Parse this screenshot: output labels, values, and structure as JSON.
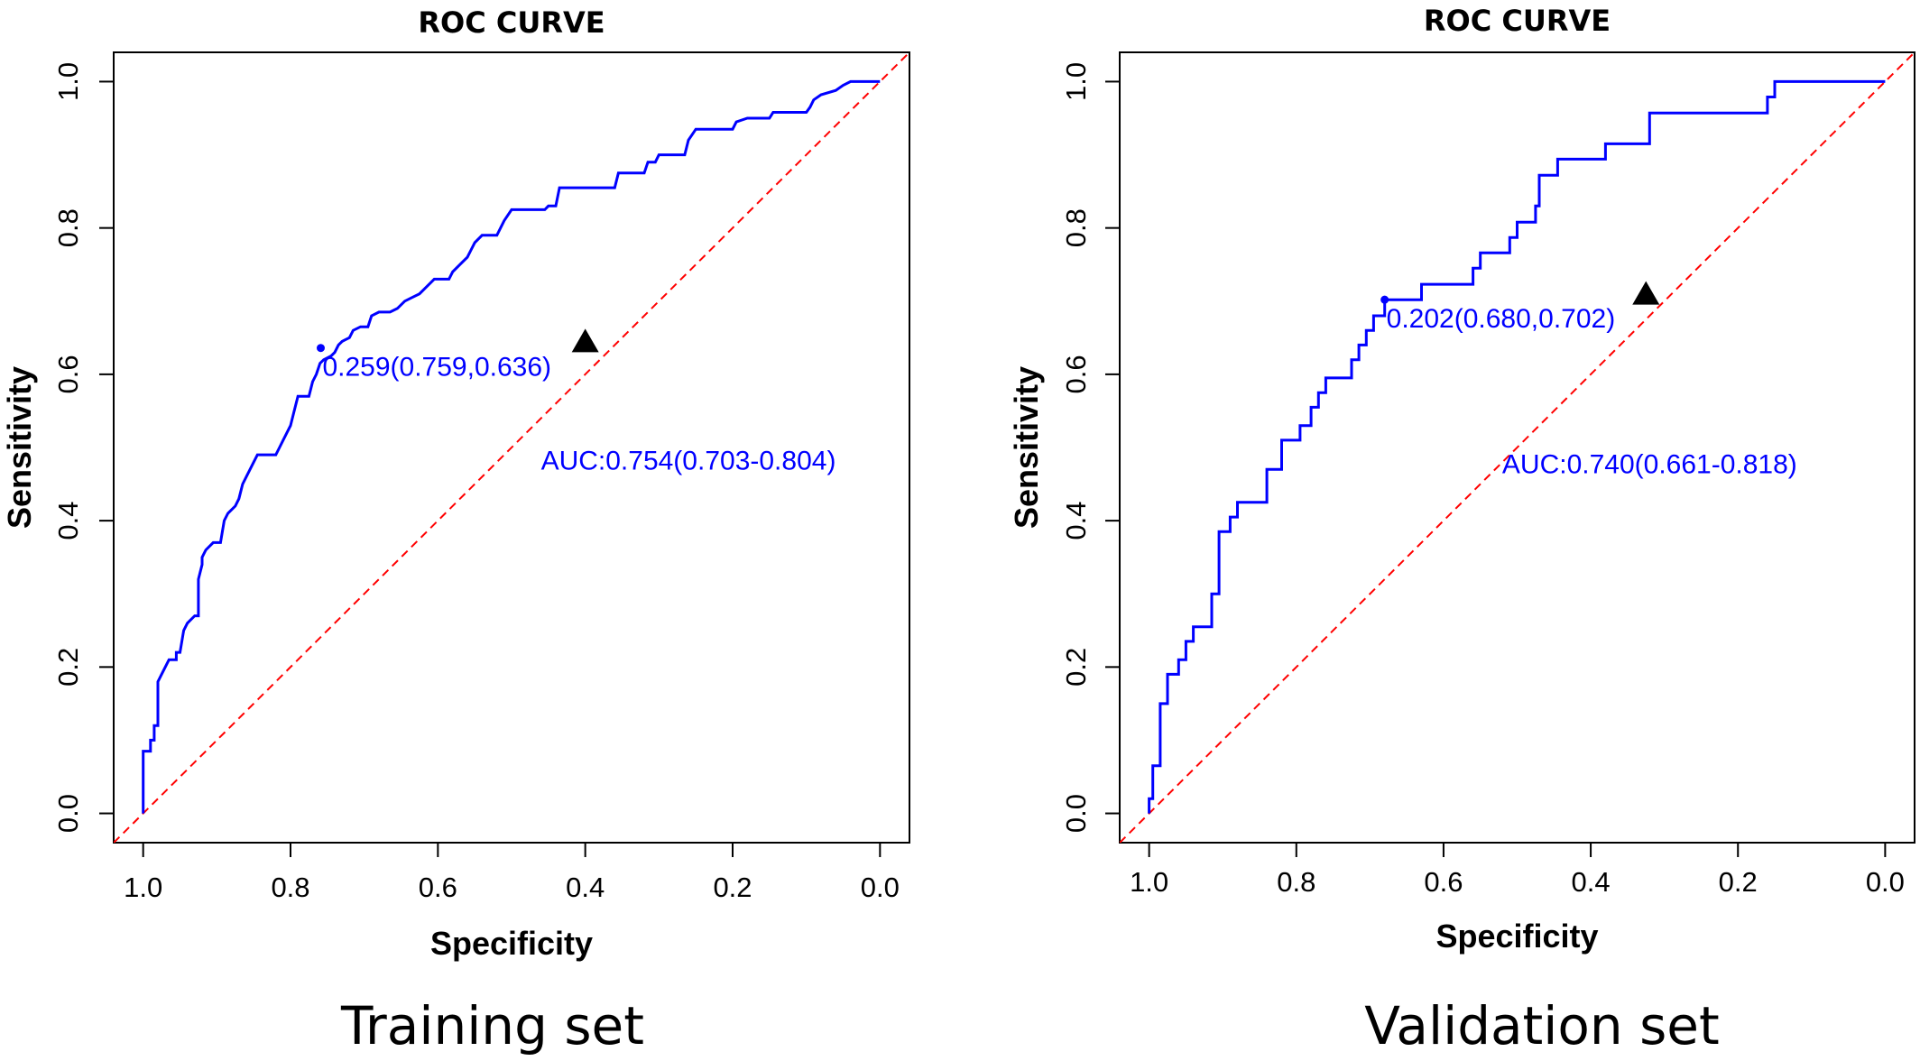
{
  "chart_data": [
    {
      "type": "line",
      "title": "ROC CURVE",
      "caption": "Training set",
      "xlabel": "Specificity",
      "ylabel": "Sensitivity",
      "x_reversed": true,
      "xlim": [
        1.04,
        -0.04
      ],
      "ylim": [
        -0.04,
        1.04
      ],
      "x_ticks": [
        1.0,
        0.8,
        0.6,
        0.4,
        0.2,
        0.0
      ],
      "x_tick_labels": [
        "1.0",
        "0.8",
        "0.6",
        "0.4",
        "0.2",
        "0.0"
      ],
      "y_ticks": [
        0.0,
        0.2,
        0.4,
        0.6,
        0.8,
        1.0
      ],
      "y_tick_labels": [
        "0.0",
        "0.2",
        "0.4",
        "0.6",
        "0.8",
        "1.0"
      ],
      "grid": false,
      "series": [
        {
          "color": "#0000ff",
          "points": [
            [
              1.0,
              0.0
            ],
            [
              1.0,
              0.085
            ],
            [
              0.99,
              0.085
            ],
            [
              0.99,
              0.1
            ],
            [
              0.985,
              0.1
            ],
            [
              0.985,
              0.12
            ],
            [
              0.98,
              0.12
            ],
            [
              0.98,
              0.18
            ],
            [
              0.975,
              0.19
            ],
            [
              0.97,
              0.2
            ],
            [
              0.965,
              0.21
            ],
            [
              0.955,
              0.21
            ],
            [
              0.955,
              0.22
            ],
            [
              0.95,
              0.22
            ],
            [
              0.945,
              0.25
            ],
            [
              0.94,
              0.26
            ],
            [
              0.93,
              0.27
            ],
            [
              0.925,
              0.27
            ],
            [
              0.925,
              0.32
            ],
            [
              0.92,
              0.34
            ],
            [
              0.92,
              0.35
            ],
            [
              0.915,
              0.36
            ],
            [
              0.905,
              0.37
            ],
            [
              0.895,
              0.37
            ],
            [
              0.89,
              0.4
            ],
            [
              0.885,
              0.41
            ],
            [
              0.875,
              0.42
            ],
            [
              0.87,
              0.43
            ],
            [
              0.865,
              0.45
            ],
            [
              0.86,
              0.46
            ],
            [
              0.855,
              0.47
            ],
            [
              0.85,
              0.48
            ],
            [
              0.845,
              0.49
            ],
            [
              0.82,
              0.49
            ],
            [
              0.815,
              0.5
            ],
            [
              0.81,
              0.51
            ],
            [
              0.805,
              0.52
            ],
            [
              0.8,
              0.53
            ],
            [
              0.795,
              0.55
            ],
            [
              0.79,
              0.57
            ],
            [
              0.775,
              0.57
            ],
            [
              0.77,
              0.59
            ],
            [
              0.765,
              0.6
            ],
            [
              0.76,
              0.615
            ],
            [
              0.755,
              0.62
            ],
            [
              0.745,
              0.625
            ],
            [
              0.74,
              0.63
            ],
            [
              0.735,
              0.64
            ],
            [
              0.73,
              0.645
            ],
            [
              0.72,
              0.65
            ],
            [
              0.715,
              0.66
            ],
            [
              0.705,
              0.665
            ],
            [
              0.695,
              0.665
            ],
            [
              0.69,
              0.68
            ],
            [
              0.68,
              0.685
            ],
            [
              0.665,
              0.685
            ],
            [
              0.655,
              0.69
            ],
            [
              0.645,
              0.7
            ],
            [
              0.635,
              0.705
            ],
            [
              0.625,
              0.71
            ],
            [
              0.615,
              0.72
            ],
            [
              0.605,
              0.73
            ],
            [
              0.585,
              0.73
            ],
            [
              0.58,
              0.74
            ],
            [
              0.57,
              0.75
            ],
            [
              0.56,
              0.76
            ],
            [
              0.555,
              0.77
            ],
            [
              0.55,
              0.78
            ],
            [
              0.54,
              0.79
            ],
            [
              0.52,
              0.79
            ],
            [
              0.51,
              0.81
            ],
            [
              0.5,
              0.825
            ],
            [
              0.455,
              0.825
            ],
            [
              0.45,
              0.83
            ],
            [
              0.44,
              0.83
            ],
            [
              0.435,
              0.855
            ],
            [
              0.36,
              0.855
            ],
            [
              0.355,
              0.875
            ],
            [
              0.32,
              0.875
            ],
            [
              0.315,
              0.89
            ],
            [
              0.305,
              0.89
            ],
            [
              0.3,
              0.9
            ],
            [
              0.265,
              0.9
            ],
            [
              0.26,
              0.92
            ],
            [
              0.25,
              0.935
            ],
            [
              0.2,
              0.935
            ],
            [
              0.195,
              0.945
            ],
            [
              0.18,
              0.95
            ],
            [
              0.15,
              0.95
            ],
            [
              0.145,
              0.958
            ],
            [
              0.1,
              0.958
            ],
            [
              0.095,
              0.965
            ],
            [
              0.09,
              0.975
            ],
            [
              0.08,
              0.982
            ],
            [
              0.06,
              0.988
            ],
            [
              0.05,
              0.995
            ],
            [
              0.04,
              1.0
            ],
            [
              0.0,
              1.0
            ]
          ]
        }
      ],
      "reference_line": {
        "color": "#ff0000",
        "style": "dashed",
        "from": [
          1.0,
          0.0
        ],
        "to": [
          0.0,
          1.0
        ]
      },
      "best_point": {
        "x": 0.759,
        "y": 0.636,
        "label": "0.259(0.759,0.636)"
      },
      "triangle_marker": {
        "x": 0.4,
        "y": 0.645
      },
      "auc_label": "AUC:0.754(0.703-0.804)",
      "auc_label_pos": [
        0.26,
        0.47
      ]
    },
    {
      "type": "line",
      "title": "ROC CURVE",
      "caption": "Validation set",
      "xlabel": "Specificity",
      "ylabel": "Sensitivity",
      "x_reversed": true,
      "xlim": [
        1.04,
        -0.04
      ],
      "ylim": [
        -0.04,
        1.04
      ],
      "x_ticks": [
        1.0,
        0.8,
        0.6,
        0.4,
        0.2,
        0.0
      ],
      "x_tick_labels": [
        "1.0",
        "0.8",
        "0.6",
        "0.4",
        "0.2",
        "0.0"
      ],
      "y_ticks": [
        0.0,
        0.2,
        0.4,
        0.6,
        0.8,
        1.0
      ],
      "y_tick_labels": [
        "0.0",
        "0.2",
        "0.4",
        "0.6",
        "0.8",
        "1.0"
      ],
      "grid": false,
      "series": [
        {
          "color": "#0000ff",
          "points": [
            [
              1.0,
              0.0
            ],
            [
              1.0,
              0.02
            ],
            [
              0.995,
              0.02
            ],
            [
              0.995,
              0.065
            ],
            [
              0.985,
              0.065
            ],
            [
              0.985,
              0.15
            ],
            [
              0.975,
              0.15
            ],
            [
              0.975,
              0.19
            ],
            [
              0.96,
              0.19
            ],
            [
              0.96,
              0.21
            ],
            [
              0.95,
              0.21
            ],
            [
              0.95,
              0.235
            ],
            [
              0.94,
              0.235
            ],
            [
              0.94,
              0.255
            ],
            [
              0.915,
              0.255
            ],
            [
              0.915,
              0.3
            ],
            [
              0.905,
              0.3
            ],
            [
              0.905,
              0.385
            ],
            [
              0.89,
              0.385
            ],
            [
              0.89,
              0.405
            ],
            [
              0.88,
              0.405
            ],
            [
              0.88,
              0.425
            ],
            [
              0.84,
              0.425
            ],
            [
              0.84,
              0.47
            ],
            [
              0.82,
              0.47
            ],
            [
              0.82,
              0.51
            ],
            [
              0.795,
              0.51
            ],
            [
              0.795,
              0.53
            ],
            [
              0.78,
              0.53
            ],
            [
              0.78,
              0.555
            ],
            [
              0.77,
              0.555
            ],
            [
              0.77,
              0.575
            ],
            [
              0.76,
              0.575
            ],
            [
              0.76,
              0.595
            ],
            [
              0.725,
              0.595
            ],
            [
              0.725,
              0.62
            ],
            [
              0.715,
              0.62
            ],
            [
              0.715,
              0.64
            ],
            [
              0.705,
              0.64
            ],
            [
              0.705,
              0.66
            ],
            [
              0.695,
              0.66
            ],
            [
              0.695,
              0.68
            ],
            [
              0.68,
              0.68
            ],
            [
              0.68,
              0.702
            ],
            [
              0.63,
              0.702
            ],
            [
              0.63,
              0.723
            ],
            [
              0.56,
              0.723
            ],
            [
              0.56,
              0.745
            ],
            [
              0.55,
              0.745
            ],
            [
              0.55,
              0.766
            ],
            [
              0.51,
              0.766
            ],
            [
              0.51,
              0.787
            ],
            [
              0.5,
              0.787
            ],
            [
              0.5,
              0.808
            ],
            [
              0.475,
              0.808
            ],
            [
              0.475,
              0.83
            ],
            [
              0.47,
              0.83
            ],
            [
              0.47,
              0.872
            ],
            [
              0.445,
              0.872
            ],
            [
              0.445,
              0.894
            ],
            [
              0.38,
              0.894
            ],
            [
              0.38,
              0.915
            ],
            [
              0.32,
              0.915
            ],
            [
              0.32,
              0.957
            ],
            [
              0.16,
              0.957
            ],
            [
              0.16,
              0.979
            ],
            [
              0.15,
              0.979
            ],
            [
              0.15,
              1.0
            ],
            [
              0.0,
              1.0
            ]
          ]
        }
      ],
      "reference_line": {
        "color": "#ff0000",
        "style": "dashed",
        "from": [
          1.0,
          0.0
        ],
        "to": [
          0.0,
          1.0
        ]
      },
      "best_point": {
        "x": 0.68,
        "y": 0.702,
        "label": "0.202(0.680,0.702)"
      },
      "triangle_marker": {
        "x": 0.325,
        "y": 0.71
      },
      "auc_label": "AUC:0.740(0.661-0.818)",
      "auc_label_pos": [
        0.32,
        0.465
      ]
    }
  ]
}
